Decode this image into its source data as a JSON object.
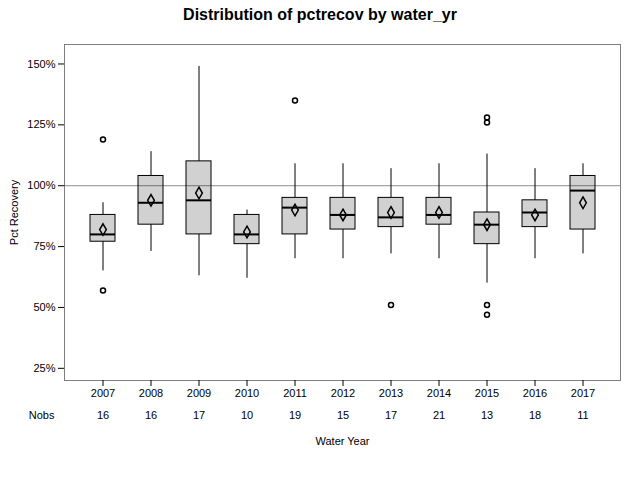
{
  "chart_data": {
    "type": "box",
    "title": "Distribution of pctrecov by water_yr",
    "xlabel": "Water Year",
    "ylabel": "Pct Recovery",
    "categories": [
      "2007",
      "2008",
      "2009",
      "2010",
      "2011",
      "2012",
      "2013",
      "2014",
      "2015",
      "2016",
      "2017"
    ],
    "q1": [
      77,
      84,
      80,
      76,
      80,
      82,
      83,
      84,
      76,
      83,
      82
    ],
    "median": [
      80,
      93,
      94,
      80,
      91,
      88,
      87,
      88,
      84,
      89,
      98
    ],
    "q3": [
      88,
      104,
      110,
      88,
      95,
      95,
      95,
      95,
      89,
      94,
      104
    ],
    "whislo": [
      65,
      73,
      63,
      62,
      70,
      70,
      72,
      70,
      60,
      70,
      72
    ],
    "whishi": [
      93,
      114,
      149,
      90,
      109,
      109,
      107,
      109,
      113,
      107,
      109
    ],
    "mean": [
      82,
      94,
      97,
      81,
      90,
      88,
      89,
      89,
      84,
      88,
      93
    ],
    "fliers": [
      [
        119,
        57
      ],
      [],
      [],
      [],
      [
        135
      ],
      [],
      [
        51
      ],
      [],
      [
        128,
        126,
        51,
        47
      ],
      [],
      []
    ],
    "nobs_label": "Nobs",
    "nobs": [
      16,
      16,
      17,
      10,
      19,
      15,
      17,
      21,
      13,
      18,
      11
    ],
    "reference_line": 100,
    "ylim": [
      20,
      158
    ],
    "yticks": [
      {
        "value": 25,
        "label": "25%"
      },
      {
        "value": 50,
        "label": "50%"
      },
      {
        "value": 75,
        "label": "75%"
      },
      {
        "value": 100,
        "label": "100%"
      },
      {
        "value": 125,
        "label": "125%"
      },
      {
        "value": 150,
        "label": "150%"
      }
    ]
  }
}
